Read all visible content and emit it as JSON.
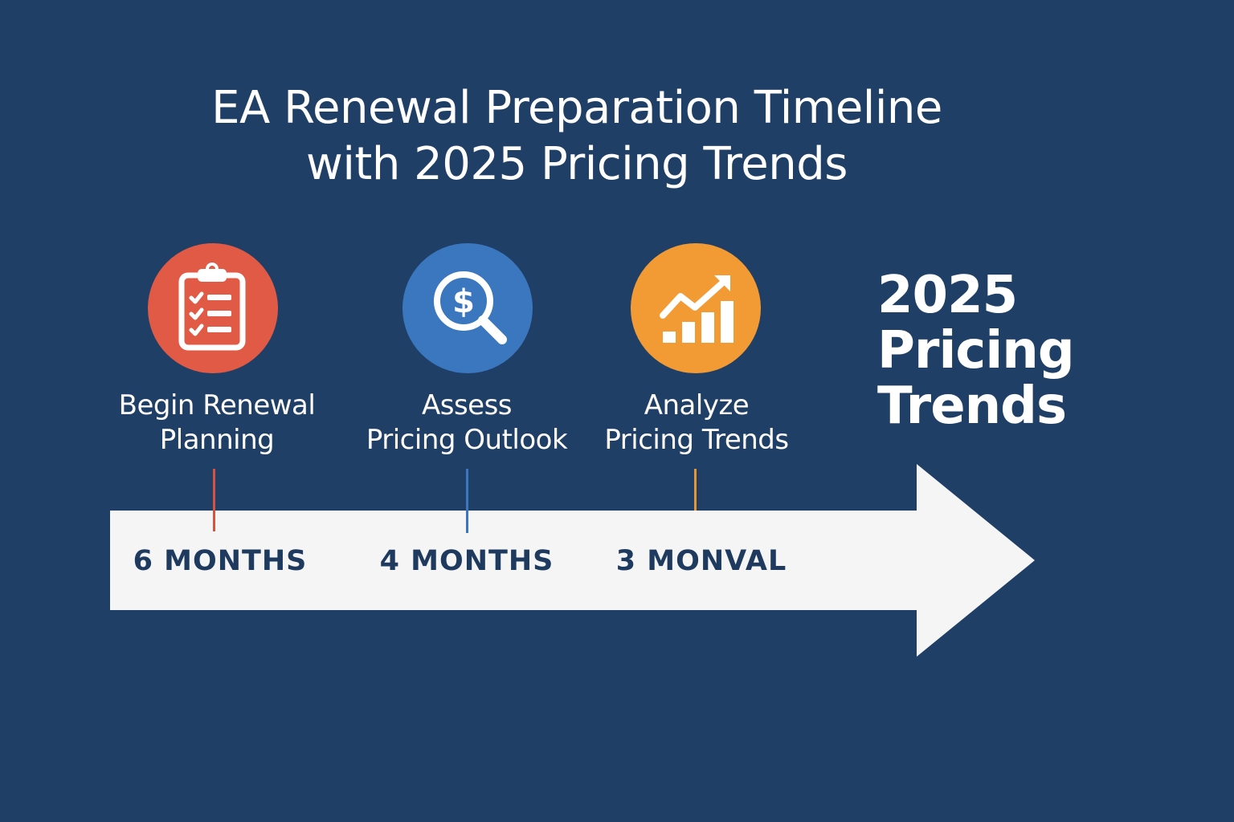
{
  "title": {
    "line1": "EA Renewal Preparation Timeline",
    "line2": "with 2025 Pricing Trends"
  },
  "milestones": [
    {
      "label_line1": "Begin Renewal",
      "label_line2": "Planning",
      "time": "6 MONTHS",
      "icon": "clipboard-checklist-icon",
      "color": "#e05a45"
    },
    {
      "label_line1": "Assess",
      "label_line2": "Pricing Outlook",
      "time": "4 MONTHS",
      "icon": "dollar-magnifier-icon",
      "color": "#3a77bf"
    },
    {
      "label_line1": "Analyze",
      "label_line2": "Pricing Trends",
      "time": "3 MONVAL",
      "icon": "growth-chart-icon",
      "color": "#f29b35"
    }
  ],
  "trends_heading": {
    "line1": "2025",
    "line2": "Pricing",
    "line3": "Trends"
  },
  "colors": {
    "background": "#203f66",
    "arrow": "#f5f5f5",
    "time_text": "#1f3a5f"
  }
}
